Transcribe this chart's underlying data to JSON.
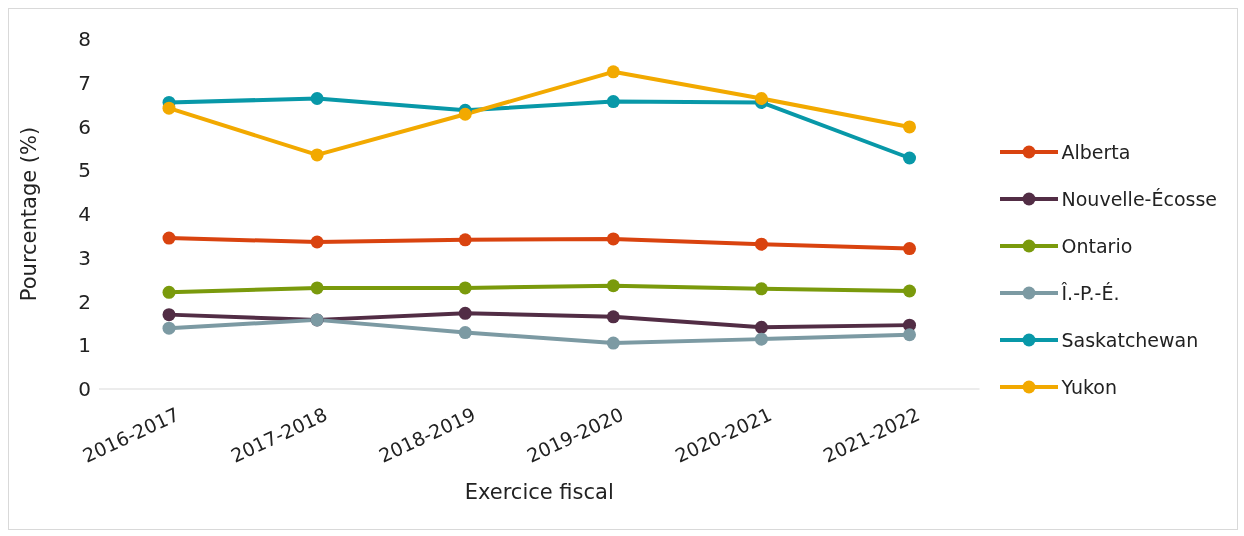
{
  "chart_data": {
    "type": "line",
    "xlabel": "Exercice fiscal",
    "ylabel": "Pourcentage (%)",
    "categories": [
      "2016-2017",
      "2017-2018",
      "2018-2019",
      "2019-2020",
      "2020-2021",
      "2021-2022"
    ],
    "series": [
      {
        "name": "Alberta",
        "color": "#d9430f",
        "values": [
          3.45,
          3.36,
          3.41,
          3.43,
          3.31,
          3.21
        ]
      },
      {
        "name": "Nouvelle-Écosse",
        "color": "#522d45",
        "values": [
          1.7,
          1.58,
          1.73,
          1.65,
          1.41,
          1.46
        ]
      },
      {
        "name": "Ontario",
        "color": "#7a9a0c",
        "values": [
          2.21,
          2.31,
          2.31,
          2.36,
          2.29,
          2.24
        ]
      },
      {
        "name": "Î.-P.-É.",
        "color": "#7c9aa3",
        "values": [
          1.39,
          1.58,
          1.29,
          1.05,
          1.14,
          1.24
        ]
      },
      {
        "name": "Saskatchewan",
        "color": "#0898a8",
        "values": [
          6.55,
          6.64,
          6.37,
          6.57,
          6.55,
          5.28
        ]
      },
      {
        "name": "Yukon",
        "color": "#f2a900",
        "values": [
          6.42,
          5.35,
          6.28,
          7.25,
          6.64,
          5.99
        ]
      }
    ],
    "ylim": [
      0,
      8
    ],
    "yticks": [
      0,
      1,
      2,
      3,
      4,
      5,
      6,
      7,
      8
    ],
    "grid": false,
    "legend": "right",
    "marker": "circle",
    "line_style": "solid"
  }
}
